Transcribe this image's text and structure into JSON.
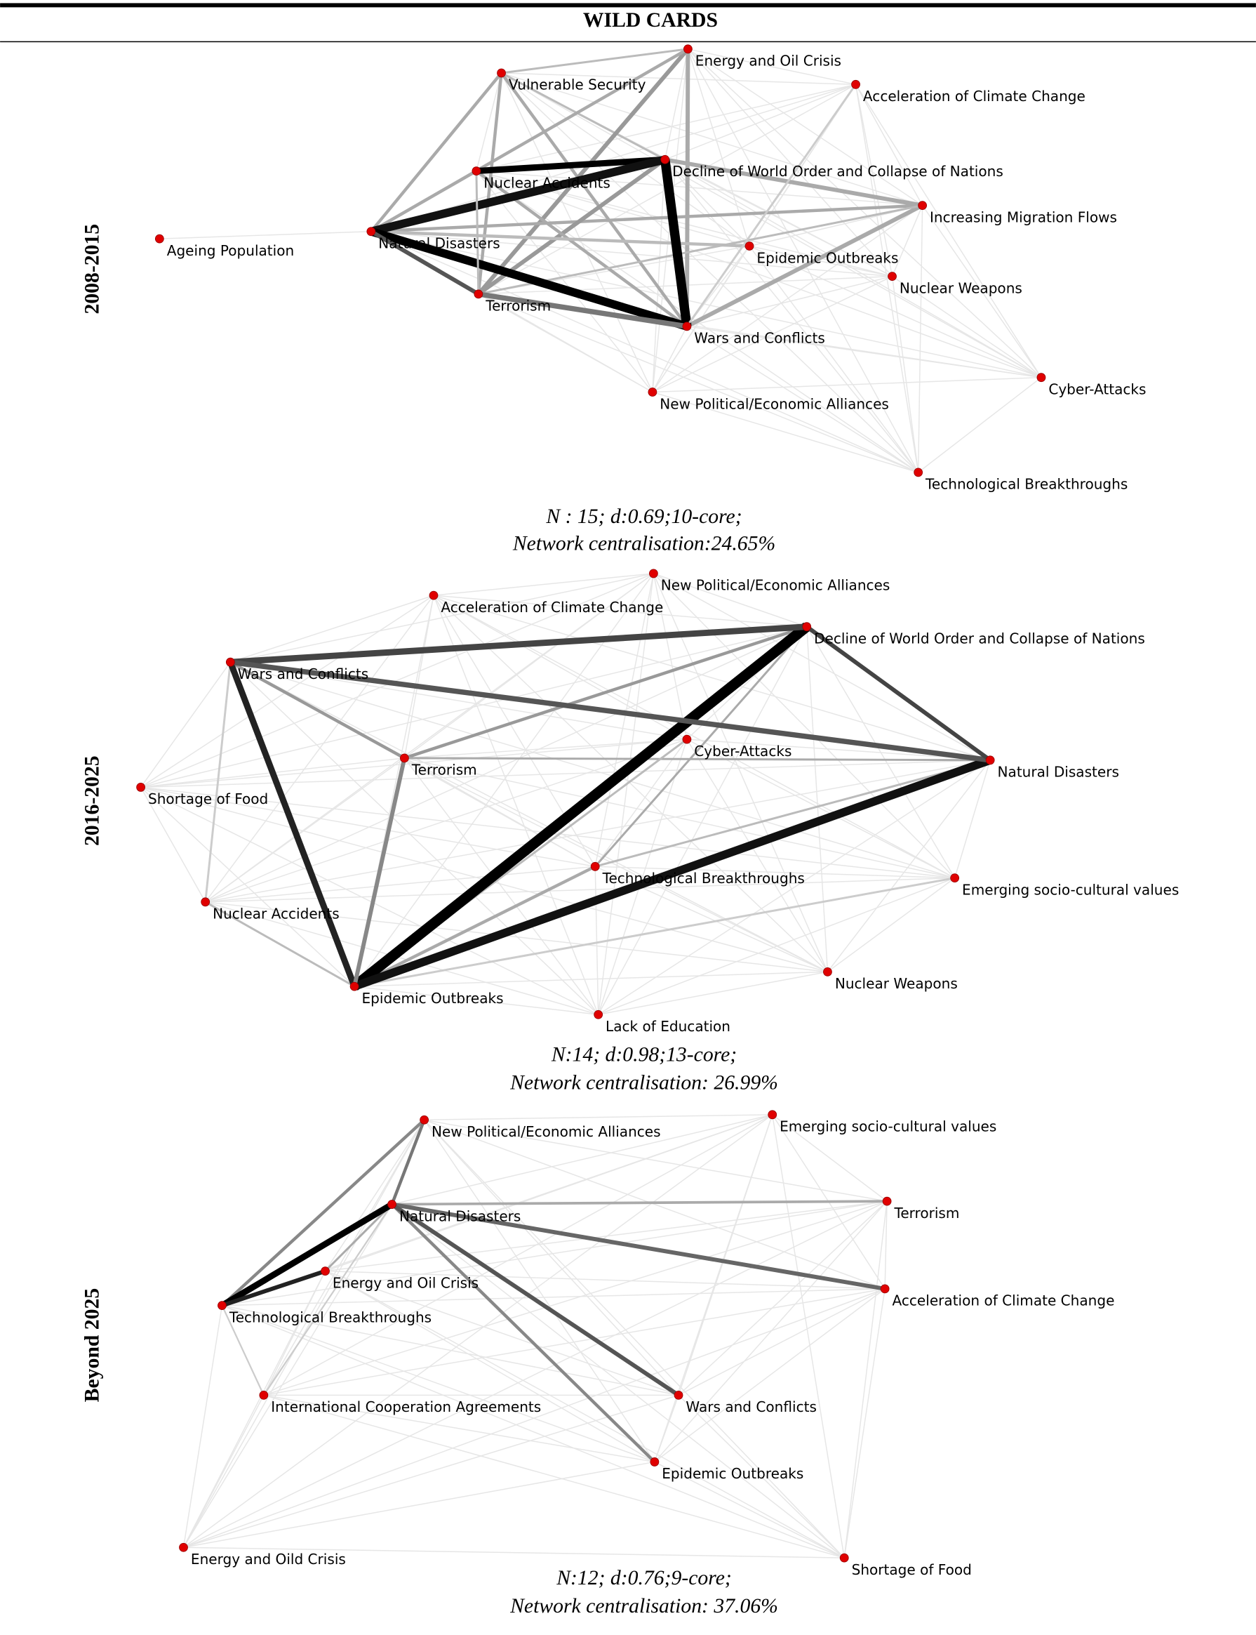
{
  "header": {
    "title": "WILD CARDS"
  },
  "panels": [
    {
      "period": "2008-2015",
      "nodes": [
        {
          "label": "Energy and Oil Crisis"
        },
        {
          "label": "Vulnerable Security"
        },
        {
          "label": "Acceleration of Climate Change"
        },
        {
          "label": "Decline of World Order and Collapse of Nations"
        },
        {
          "label": "Nuclear Accidents"
        },
        {
          "label": "Increasing Migration Flows"
        },
        {
          "label": "Ageing Population"
        },
        {
          "label": "Natural Disasters"
        },
        {
          "label": "Epidemic Outbreaks"
        },
        {
          "label": "Nuclear Weapons"
        },
        {
          "label": "Terrorism"
        },
        {
          "label": "Wars and Conflicts"
        },
        {
          "label": "New Political/Economic Alliances"
        },
        {
          "label": "Cyber-Attacks"
        },
        {
          "label": "Technological Breakthroughs"
        }
      ],
      "caption": [
        "N : 15; d:0.69;10-core;",
        "Network centralisation:24.65%"
      ]
    },
    {
      "period": "2016-2025",
      "nodes": [
        {
          "label": "New Political/Economic Alliances"
        },
        {
          "label": "Acceleration of Climate Change"
        },
        {
          "label": "Decline of World Order and Collapse of Nations"
        },
        {
          "label": "Wars and Conflicts"
        },
        {
          "label": "Cyber-Attacks"
        },
        {
          "label": "Terrorism"
        },
        {
          "label": "Natural Disasters"
        },
        {
          "label": "Shortage of Food"
        },
        {
          "label": "Technological Breakthroughs"
        },
        {
          "label": "Emerging socio-cultural values"
        },
        {
          "label": "Nuclear Accidents"
        },
        {
          "label": "Nuclear Weapons"
        },
        {
          "label": "Epidemic Outbreaks"
        },
        {
          "label": "Lack of Education"
        }
      ],
      "caption": [
        "N:14; d:0.98;13-core;",
        "Network centralisation: 26.99%"
      ]
    },
    {
      "period": "Beyond 2025",
      "nodes": [
        {
          "label": "New Political/Economic Alliances"
        },
        {
          "label": "Emerging socio-cultural values"
        },
        {
          "label": "Natural Disasters"
        },
        {
          "label": "Terrorism"
        },
        {
          "label": "Energy and Oil Crisis"
        },
        {
          "label": "Technological Breakthroughs"
        },
        {
          "label": "Acceleration of Climate Change"
        },
        {
          "label": "International Cooperation Agreements"
        },
        {
          "label": "Wars and Conflicts"
        },
        {
          "label": "Epidemic Outbreaks"
        },
        {
          "label": "Energy and Oild Crisis"
        },
        {
          "label": "Shortage of Food"
        }
      ],
      "caption": [
        "N:12; d:0.76;9-core;",
        "Network centralisation: 37.06%"
      ]
    }
  ]
}
